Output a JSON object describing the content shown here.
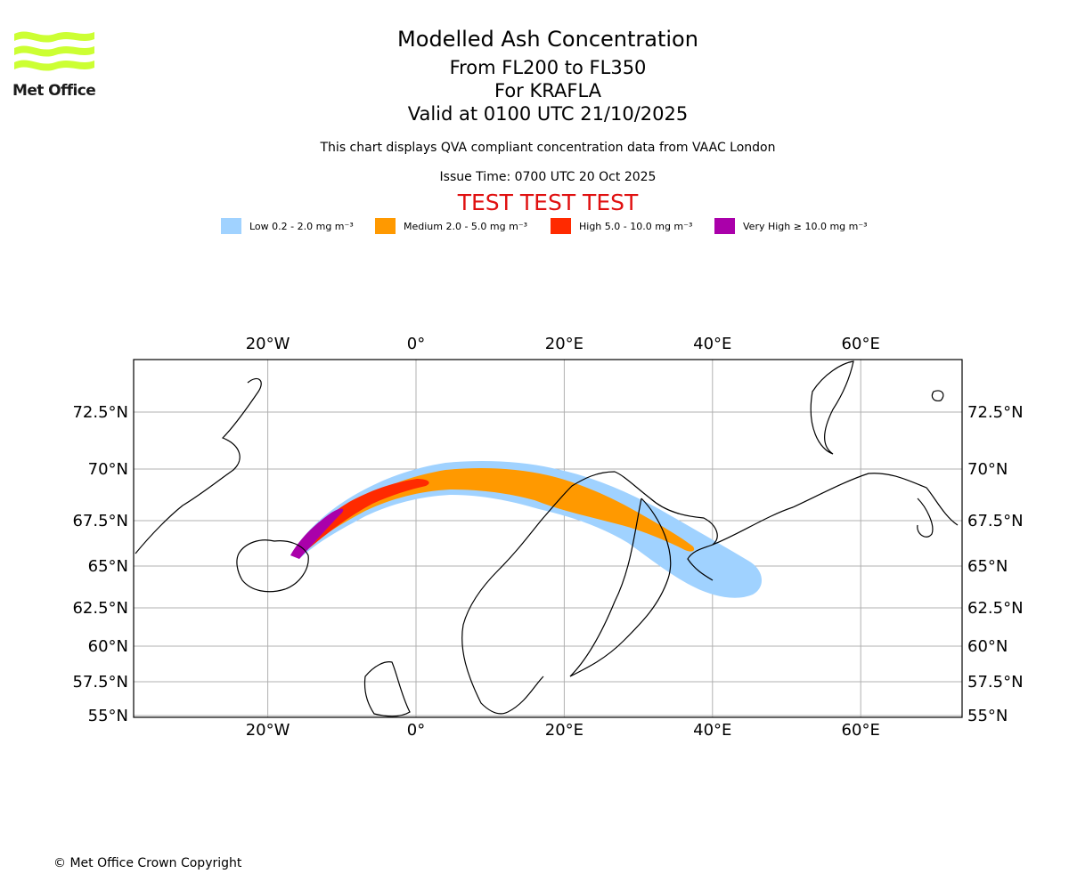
{
  "logo": {
    "text": "Met Office",
    "color": "#ccff33"
  },
  "header": {
    "title": "Modelled Ash Concentration",
    "levels": "From FL200 to FL350",
    "volcano": "For KRAFLA",
    "valid": "Valid at 0100 UTC 21/10/2025",
    "notice": "This chart displays QVA compliant concentration data from VAAC London",
    "issue_time": "Issue Time: 0700 UTC 20 Oct 2025",
    "test_banner": "TEST TEST TEST"
  },
  "legend": [
    {
      "label": "Low 0.2 - 2.0 mg m⁻³",
      "color": "#a0d2ff"
    },
    {
      "label": "Medium 2.0 - 5.0 mg m⁻³",
      "color": "#ff9900"
    },
    {
      "label": "High 5.0 - 10.0 mg m⁻³",
      "color": "#ff2a00"
    },
    {
      "label": "Very High ≥ 10.0 mg m⁻³",
      "color": "#aa00aa"
    }
  ],
  "map": {
    "lon_ticks": [
      {
        "lon": -20,
        "label": "20°W"
      },
      {
        "lon": 0,
        "label": "0°"
      },
      {
        "lon": 20,
        "label": "20°E"
      },
      {
        "lon": 40,
        "label": "40°E"
      },
      {
        "lon": 60,
        "label": "60°E"
      }
    ],
    "lat_ticks": [
      {
        "lat": 72.5,
        "label": "72.5°N"
      },
      {
        "lat": 70,
        "label": "70°N"
      },
      {
        "lat": 67.5,
        "label": "67.5°N"
      },
      {
        "lat": 65,
        "label": "65°N"
      },
      {
        "lat": 62.5,
        "label": "62.5°N"
      },
      {
        "lat": 60,
        "label": "60°N"
      },
      {
        "lat": 57.5,
        "label": "57.5°N"
      },
      {
        "lat": 55,
        "label": "55°N"
      }
    ]
  },
  "footer": {
    "copyright": "© Met Office Crown Copyright"
  }
}
